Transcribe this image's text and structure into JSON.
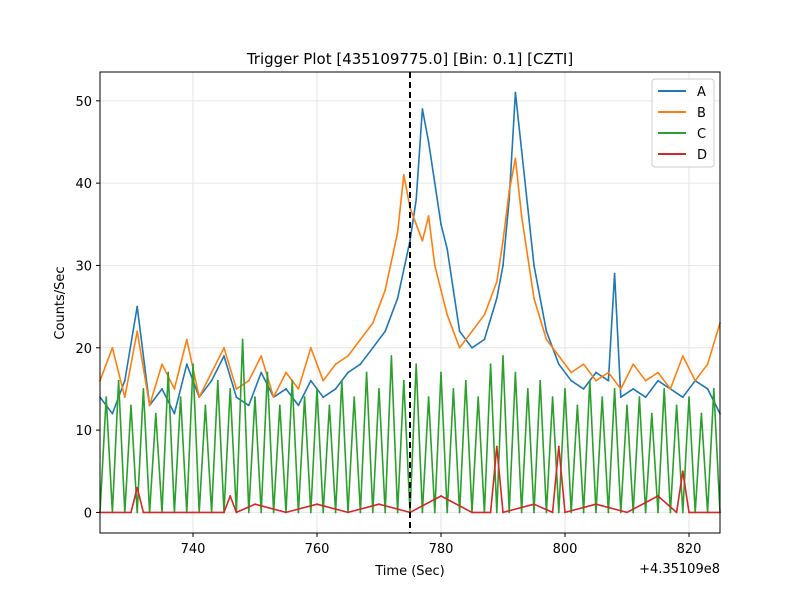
{
  "chart_data": {
    "type": "line",
    "title": "Trigger Plot [435109775.0] [Bin: 0.1] [CZTI]",
    "xlabel": "Time (Sec)",
    "ylabel": "Counts/Sec",
    "x_offset_label": "+4.35109e8",
    "xlim": [
      725,
      825
    ],
    "ylim": [
      -2.5,
      53.5
    ],
    "x_ticks": [
      740,
      760,
      780,
      800,
      820
    ],
    "y_ticks": [
      0,
      10,
      20,
      30,
      40,
      50
    ],
    "x_tick_labels": [
      "740",
      "760",
      "780",
      "800",
      "820"
    ],
    "y_tick_labels": [
      "0",
      "10",
      "20",
      "30",
      "40",
      "50"
    ],
    "grid": true,
    "legend_position": "upper-right",
    "trigger_line": {
      "x": 775,
      "style": "dashed",
      "color": "#000000"
    },
    "series": [
      {
        "name": "A",
        "color": "#1f77b4",
        "x": [
          725,
          727,
          729,
          731,
          733,
          735,
          737,
          739,
          741,
          743,
          745,
          747,
          749,
          751,
          753,
          755,
          757,
          759,
          761,
          763,
          765,
          767,
          769,
          771,
          773,
          775,
          776,
          777,
          778,
          779,
          780,
          781,
          782,
          783,
          785,
          787,
          789,
          790,
          791,
          792,
          793,
          794,
          795,
          797,
          799,
          801,
          803,
          805,
          807,
          808,
          809,
          811,
          813,
          815,
          817,
          819,
          821,
          823,
          825
        ],
        "y": [
          14,
          12,
          16,
          25,
          13,
          15,
          12,
          18,
          14,
          16,
          19,
          14,
          13,
          17,
          14,
          15,
          13,
          16,
          14,
          15,
          17,
          18,
          20,
          22,
          26,
          33,
          38,
          49,
          45,
          40,
          35,
          32,
          27,
          22,
          20,
          21,
          26,
          30,
          38,
          51,
          44,
          37,
          30,
          22,
          18,
          16,
          15,
          17,
          16,
          29,
          14,
          15,
          14,
          16,
          15,
          14,
          16,
          15,
          12
        ]
      },
      {
        "name": "B",
        "color": "#ff7f0e",
        "x": [
          725,
          727,
          729,
          731,
          733,
          735,
          737,
          739,
          741,
          743,
          745,
          747,
          749,
          751,
          753,
          755,
          757,
          759,
          761,
          763,
          765,
          767,
          769,
          771,
          773,
          774,
          775,
          776,
          777,
          778,
          779,
          780,
          781,
          782,
          783,
          785,
          787,
          789,
          790,
          791,
          792,
          793,
          794,
          795,
          797,
          799,
          801,
          803,
          805,
          807,
          809,
          811,
          813,
          815,
          817,
          819,
          821,
          823,
          825
        ],
        "y": [
          16,
          20,
          14,
          22,
          13,
          18,
          15,
          21,
          14,
          17,
          20,
          15,
          16,
          19,
          14,
          17,
          15,
          20,
          16,
          18,
          19,
          21,
          23,
          27,
          34,
          41,
          37,
          35,
          33,
          36,
          30,
          27,
          24,
          22,
          20,
          22,
          24,
          28,
          33,
          39,
          43,
          36,
          31,
          26,
          21,
          19,
          17,
          18,
          16,
          17,
          15,
          18,
          16,
          17,
          15,
          19,
          16,
          18,
          23
        ]
      },
      {
        "name": "C",
        "color": "#2ca02c",
        "x": [
          725,
          726,
          727,
          728,
          729,
          730,
          731,
          732,
          733,
          734,
          735,
          736,
          737,
          738,
          739,
          740,
          741,
          742,
          743,
          744,
          745,
          746,
          747,
          748,
          749,
          750,
          751,
          752,
          753,
          754,
          755,
          756,
          757,
          758,
          759,
          760,
          761,
          762,
          763,
          764,
          765,
          766,
          767,
          768,
          769,
          770,
          771,
          772,
          773,
          774,
          775,
          776,
          777,
          778,
          779,
          780,
          781,
          782,
          783,
          784,
          785,
          786,
          787,
          788,
          789,
          790,
          791,
          792,
          793,
          794,
          795,
          796,
          797,
          798,
          799,
          800,
          801,
          802,
          803,
          804,
          805,
          806,
          807,
          808,
          809,
          810,
          811,
          812,
          813,
          814,
          815,
          816,
          817,
          818,
          819,
          820,
          821,
          822,
          823,
          824,
          825
        ],
        "y": [
          0,
          14,
          0,
          16,
          0,
          13,
          0,
          15,
          0,
          12,
          0,
          17,
          0,
          14,
          0,
          18,
          0,
          13,
          0,
          16,
          0,
          15,
          0,
          21,
          0,
          14,
          0,
          17,
          0,
          13,
          0,
          16,
          0,
          14,
          0,
          15,
          0,
          13,
          0,
          16,
          0,
          14,
          0,
          17,
          0,
          15,
          0,
          19,
          0,
          16,
          0,
          18,
          0,
          14,
          0,
          17,
          0,
          15,
          0,
          16,
          0,
          14,
          0,
          18,
          0,
          19,
          0,
          17,
          0,
          15,
          0,
          16,
          0,
          14,
          0,
          15,
          0,
          13,
          0,
          16,
          0,
          14,
          0,
          15,
          0,
          13,
          0,
          14,
          0,
          12,
          0,
          15,
          0,
          13,
          0,
          14,
          0,
          12,
          0,
          15,
          0
        ]
      },
      {
        "name": "D",
        "color": "#d62728",
        "x": [
          725,
          730,
          731,
          732,
          740,
          745,
          746,
          747,
          750,
          755,
          760,
          765,
          770,
          775,
          780,
          785,
          788,
          789,
          790,
          795,
          798,
          799,
          800,
          805,
          810,
          815,
          818,
          819,
          820,
          825
        ],
        "y": [
          0,
          0,
          3,
          0,
          0,
          0,
          2,
          0,
          1,
          0,
          1,
          0,
          1,
          0,
          2,
          0,
          0,
          8,
          0,
          1,
          0,
          8,
          0,
          1,
          0,
          2,
          0,
          5,
          0,
          0
        ]
      }
    ]
  }
}
